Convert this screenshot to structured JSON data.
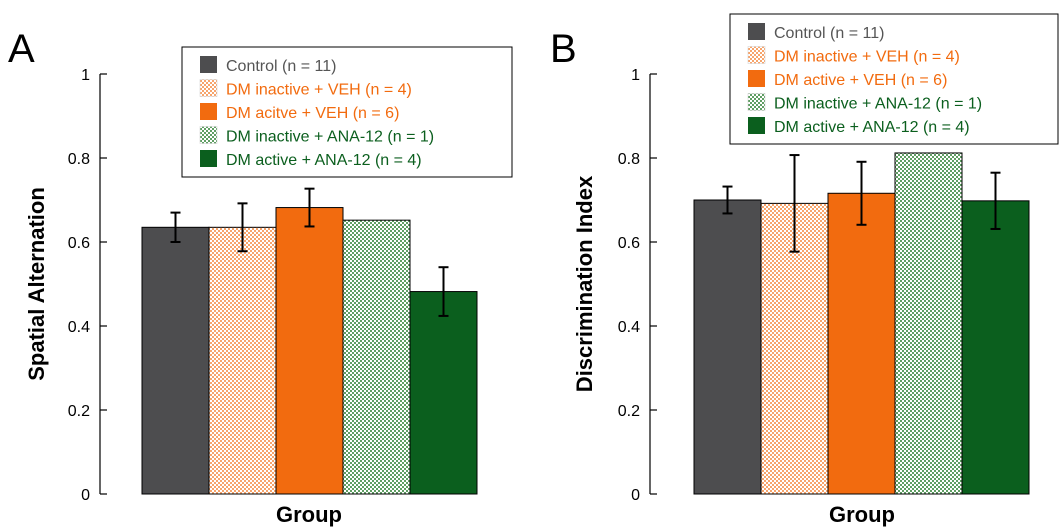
{
  "colors": {
    "gray": "#4d4d4f",
    "orange": "#f26b0f",
    "orange_light": "#f9c3a0",
    "green": "#0b5f1e",
    "green_light": "#a8cfa6",
    "legend_gray_text": "#555555"
  },
  "chart_data": [
    {
      "type": "bar",
      "panel": "A",
      "ylabel": "Spatial Alternation",
      "xlabel": "Group",
      "ylim": [
        0,
        1
      ],
      "yticks": [
        "0",
        "0.2",
        "0.4",
        "0.6",
        "0.8",
        "1"
      ],
      "legend_placement": "top-right",
      "series": [
        {
          "name": "Control (n = 11)",
          "value": 0.635,
          "error": 0.035,
          "color": "gray",
          "pattern": "solid",
          "text_color": "legend_gray_text"
        },
        {
          "name": "DM inactive + VEH (n = 4)",
          "value": 0.635,
          "error": 0.057,
          "color": "orange",
          "pattern": "hatch",
          "text_color": "orange"
        },
        {
          "name": "DM acitve + VEH (n = 6)",
          "value": 0.682,
          "error": 0.045,
          "color": "orange",
          "pattern": "solid",
          "text_color": "orange"
        },
        {
          "name": "DM inactive + ANA-12 (n = 1)",
          "value": 0.652,
          "error": null,
          "color": "green",
          "pattern": "hatch",
          "text_color": "green"
        },
        {
          "name": "DM active + ANA-12 (n = 4)",
          "value": 0.482,
          "error": 0.058,
          "color": "green",
          "pattern": "solid",
          "text_color": "green"
        }
      ]
    },
    {
      "type": "bar",
      "panel": "B",
      "ylabel": "Discrimination Index",
      "xlabel": "Group",
      "ylim": [
        0,
        1
      ],
      "yticks": [
        "0",
        "0.2",
        "0.4",
        "0.6",
        "0.8",
        "1"
      ],
      "legend_placement": "top-right",
      "series": [
        {
          "name": "Control (n = 11)",
          "value": 0.7,
          "error": 0.032,
          "color": "gray",
          "pattern": "solid",
          "text_color": "legend_gray_text"
        },
        {
          "name": "DM inactive + VEH (n = 4)",
          "value": 0.692,
          "error": 0.115,
          "color": "orange",
          "pattern": "hatch",
          "text_color": "orange"
        },
        {
          "name": "DM active + VEH (n = 6)",
          "value": 0.716,
          "error": 0.075,
          "color": "orange",
          "pattern": "solid",
          "text_color": "orange"
        },
        {
          "name": "DM inactive + ANA-12 (n = 1)",
          "value": 0.812,
          "error": null,
          "color": "green",
          "pattern": "hatch",
          "text_color": "green"
        },
        {
          "name": "DM active + ANA-12 (n = 4)",
          "value": 0.698,
          "error": 0.067,
          "color": "green",
          "pattern": "solid",
          "text_color": "green"
        }
      ]
    }
  ]
}
